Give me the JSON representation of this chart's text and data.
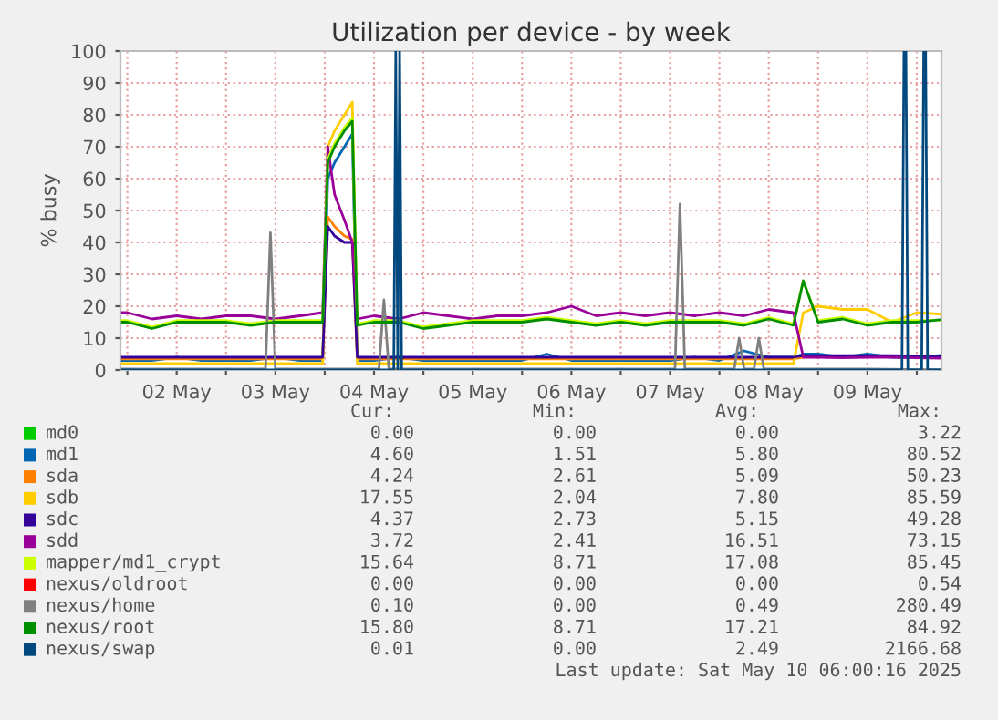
{
  "chart_data": {
    "type": "line",
    "title": "Utilization per device - by week",
    "ylabel": "% busy",
    "x": [
      "2025-05-01T22:48",
      "2025-05-02T00:00",
      "2025-05-02T06:00",
      "2025-05-02T12:00",
      "2025-05-02T18:00",
      "2025-05-03T00:00",
      "2025-05-03T06:00",
      "2025-05-03T12:00",
      "2025-05-03T18:00",
      "2025-05-03T23:30",
      "2025-05-04T00:45",
      "2025-05-04T02:24",
      "2025-05-04T04:48",
      "2025-05-04T06:43",
      "2025-05-04T07:55",
      "2025-05-04T12:00",
      "2025-05-04T18:00",
      "2025-05-05T00:00",
      "2025-05-05T06:00",
      "2025-05-05T12:00",
      "2025-05-05T18:00",
      "2025-05-06T00:00",
      "2025-05-06T06:00",
      "2025-05-06T12:00",
      "2025-05-06T18:00",
      "2025-05-07T00:00",
      "2025-05-07T06:00",
      "2025-05-07T12:00",
      "2025-05-07T18:00",
      "2025-05-08T00:00",
      "2025-05-08T06:00",
      "2025-05-08T12:00",
      "2025-05-08T18:00",
      "2025-05-08T20:24",
      "2025-05-09T00:00",
      "2025-05-09T06:00",
      "2025-05-09T12:00",
      "2025-05-09T18:00",
      "2025-05-10T00:00",
      "2025-05-10T06:00"
    ],
    "series": [
      {
        "name": "md0",
        "color": "#00cc00",
        "values": [
          null,
          null,
          null,
          null,
          null,
          null,
          null,
          null,
          null,
          null,
          null,
          null,
          null,
          null,
          null,
          null,
          null,
          null,
          null,
          null,
          null,
          null,
          null,
          null,
          null,
          null,
          null,
          null,
          null,
          null,
          null,
          null,
          null,
          null,
          null,
          null,
          null,
          null,
          null,
          null
        ]
      },
      {
        "name": "md1",
        "color": "#0066b3",
        "values": [
          3,
          3,
          3,
          4,
          3,
          3,
          3,
          4,
          3,
          3,
          60,
          65,
          70,
          74,
          3,
          3,
          4,
          3,
          3,
          3,
          3,
          3,
          5,
          3,
          3,
          3,
          3,
          3,
          4,
          3,
          6,
          4,
          4,
          5,
          5,
          4,
          5,
          4,
          4,
          4.6
        ]
      },
      {
        "name": "sda",
        "color": "#ff8000",
        "values": [
          3.5,
          3.5,
          3.5,
          3.5,
          3.5,
          3.5,
          3.5,
          3.5,
          3.5,
          3.5,
          48,
          45,
          42,
          41,
          3.5,
          3.5,
          3.5,
          3.5,
          3.5,
          3.5,
          3.5,
          3.5,
          3.5,
          3.5,
          3.5,
          3.5,
          3.5,
          3.5,
          3.5,
          3.5,
          3.5,
          3.5,
          3.5,
          4,
          null,
          null,
          null,
          null,
          null,
          null
        ]
      },
      {
        "name": "sdb",
        "color": "#ffcc00",
        "values": [
          2,
          2,
          2,
          2,
          2,
          2,
          2,
          2,
          2,
          2,
          70,
          75,
          80,
          84,
          2,
          2,
          2,
          2,
          2,
          2,
          2,
          2,
          2,
          2,
          2,
          2,
          2,
          2,
          2,
          2,
          2,
          2,
          2,
          18,
          20,
          19,
          19,
          15,
          18,
          17.5
        ]
      },
      {
        "name": "sdc",
        "color": "#330099",
        "values": [
          4,
          4,
          4,
          4,
          4,
          4,
          4,
          4,
          4,
          4,
          45,
          42,
          40,
          40,
          4,
          4,
          4,
          4,
          4,
          4,
          4,
          4,
          4,
          4,
          4,
          4,
          4,
          4,
          4,
          4,
          4,
          4,
          4,
          4.5,
          4.5,
          4.5,
          4.5,
          4.5,
          4.4,
          4.4
        ]
      },
      {
        "name": "sdd",
        "color": "#990099",
        "values": [
          18,
          18,
          16,
          17,
          16,
          17,
          17,
          16,
          17,
          18,
          70,
          55,
          47,
          40,
          16,
          17,
          16,
          18,
          17,
          16,
          17,
          17,
          18,
          20,
          17,
          18,
          17,
          18,
          17,
          18,
          17,
          19,
          18,
          4,
          4,
          3.8,
          4,
          4,
          3.8,
          3.7
        ]
      },
      {
        "name": "mapper/md1_crypt",
        "color": "#ccff00",
        "values": [
          15.5,
          15.5,
          13.5,
          15.5,
          15.5,
          15.5,
          14.5,
          15.5,
          15.5,
          15.5,
          66,
          71,
          76,
          79,
          14.5,
          15.5,
          15.5,
          13.5,
          14.5,
          15.5,
          15.5,
          15.5,
          16.5,
          15.5,
          14.5,
          15.5,
          14.5,
          15.5,
          15.5,
          15.5,
          14.5,
          16.5,
          14.5,
          28,
          15.5,
          16.5,
          14.5,
          15.5,
          15.5,
          15.6
        ]
      },
      {
        "name": "nexus/oldroot",
        "color": "#ff0000",
        "values": [
          null,
          null,
          null,
          null,
          null,
          null,
          null,
          null,
          null,
          null,
          null,
          null,
          null,
          null,
          null,
          null,
          null,
          null,
          null,
          null,
          null,
          null,
          null,
          null,
          null,
          null,
          null,
          null,
          null,
          null,
          null,
          null,
          null,
          null,
          null,
          null,
          null,
          null,
          null,
          null
        ]
      },
      {
        "name": "nexus/home",
        "color": "#808080",
        "x": [
          "2025-05-01T22:48",
          "2025-05-02T12:00",
          "2025-05-03T00:00",
          "2025-05-03T09:36",
          "2025-05-03T10:48",
          "2025-05-03T12:00",
          "2025-05-04T00:00",
          "2025-05-04T13:12",
          "2025-05-04T14:24",
          "2025-05-04T15:36",
          "2025-05-05T12:00",
          "2025-05-06T12:00",
          "2025-05-07T13:12",
          "2025-05-07T14:24",
          "2025-05-07T15:36",
          "2025-05-08T03:36",
          "2025-05-08T04:48",
          "2025-05-08T06:00",
          "2025-05-08T08:24",
          "2025-05-08T09:36",
          "2025-05-08T10:48",
          "2025-05-08T21:36",
          "2025-05-09T00:00",
          "2025-05-09T12:00",
          "2025-05-10T06:00"
        ],
        "values": [
          0.3,
          0.3,
          0.3,
          0.3,
          43,
          0.3,
          0.3,
          0.3,
          22,
          0.3,
          0.3,
          0.3,
          0.3,
          52,
          0.3,
          0.3,
          10,
          0.3,
          0.3,
          10,
          0.3,
          0.3,
          0.3,
          0.3,
          0.1
        ]
      },
      {
        "name": "nexus/root",
        "color": "#008f00",
        "values": [
          15,
          15,
          13,
          15,
          15,
          15,
          14,
          15,
          15,
          15,
          65,
          70,
          75,
          78,
          14,
          15,
          15,
          13,
          14,
          15,
          15,
          15,
          16,
          15,
          14,
          15,
          14,
          15,
          15,
          15,
          14,
          16,
          14,
          28,
          15,
          16,
          14,
          15,
          15,
          15.8
        ]
      },
      {
        "name": "nexus/swap",
        "color": "#00487d",
        "x": [
          "2025-05-01T22:48",
          "2025-05-04T16:48",
          "2025-05-04T17:17",
          "2025-05-04T17:46",
          "2025-05-04T18:14",
          "2025-05-04T18:43",
          "2025-05-09T20:24",
          "2025-05-09T20:53",
          "2025-05-09T21:22",
          "2025-05-09T21:50",
          "2025-05-10T01:12",
          "2025-05-10T01:41",
          "2025-05-10T02:10",
          "2025-05-10T02:38",
          "2025-05-10T06:00"
        ],
        "values": [
          0,
          0,
          100,
          0,
          100,
          0,
          0,
          100,
          100,
          0,
          0,
          100,
          100,
          0,
          0
        ]
      }
    ],
    "xlim": [
      "2025-05-01T22:19",
      "2025-05-10T06:00"
    ],
    "ylim": [
      0,
      100
    ],
    "xticks": [
      {
        "value": "2025-05-02",
        "label": null
      },
      {
        "value": "2025-05-02T12:00",
        "label": "02 May"
      },
      {
        "value": "2025-05-03",
        "label": null
      },
      {
        "value": "2025-05-03T12:00",
        "label": "03 May"
      },
      {
        "value": "2025-05-04",
        "label": null
      },
      {
        "value": "2025-05-04T12:00",
        "label": "04 May"
      },
      {
        "value": "2025-05-05",
        "label": null
      },
      {
        "value": "2025-05-05T12:00",
        "label": "05 May"
      },
      {
        "value": "2025-05-06",
        "label": null
      },
      {
        "value": "2025-05-06T12:00",
        "label": "06 May"
      },
      {
        "value": "2025-05-07",
        "label": null
      },
      {
        "value": "2025-05-07T12:00",
        "label": "07 May"
      },
      {
        "value": "2025-05-08",
        "label": null
      },
      {
        "value": "2025-05-08T12:00",
        "label": "08 May"
      },
      {
        "value": "2025-05-09",
        "label": null
      },
      {
        "value": "2025-05-09T12:00",
        "label": "09 May"
      },
      {
        "value": "2025-05-10",
        "label": null
      }
    ],
    "yticks": [
      0,
      10,
      20,
      30,
      40,
      50,
      60,
      70,
      80,
      90,
      100
    ],
    "grid": true,
    "legend": "bottom",
    "marker": "none",
    "line_style": "solid",
    "annotations": [
      "Cur:",
      "Min:",
      "Avg:",
      "Max:",
      "0.00",
      "0.00",
      "0.00",
      "3.22",
      "4.60",
      "1.51",
      "5.80",
      "80.52",
      "4.24",
      "2.61",
      "5.09",
      "50.23",
      "17.55",
      "2.04",
      "7.80",
      "85.59",
      "4.37",
      "2.73",
      "5.15",
      "49.28",
      "3.72",
      "2.41",
      "16.51",
      "73.15",
      "15.64",
      "8.71",
      "17.08",
      "85.45",
      "0.00",
      "0.00",
      "0.00",
      "0.54",
      "0.10",
      "0.00",
      "0.49",
      "280.49",
      "15.80",
      "8.71",
      "17.21",
      "84.92",
      "0.01",
      "0.00",
      "2.49",
      "2166.68",
      "Last update: Sat May 10 06:00:16 2025"
    ]
  }
}
